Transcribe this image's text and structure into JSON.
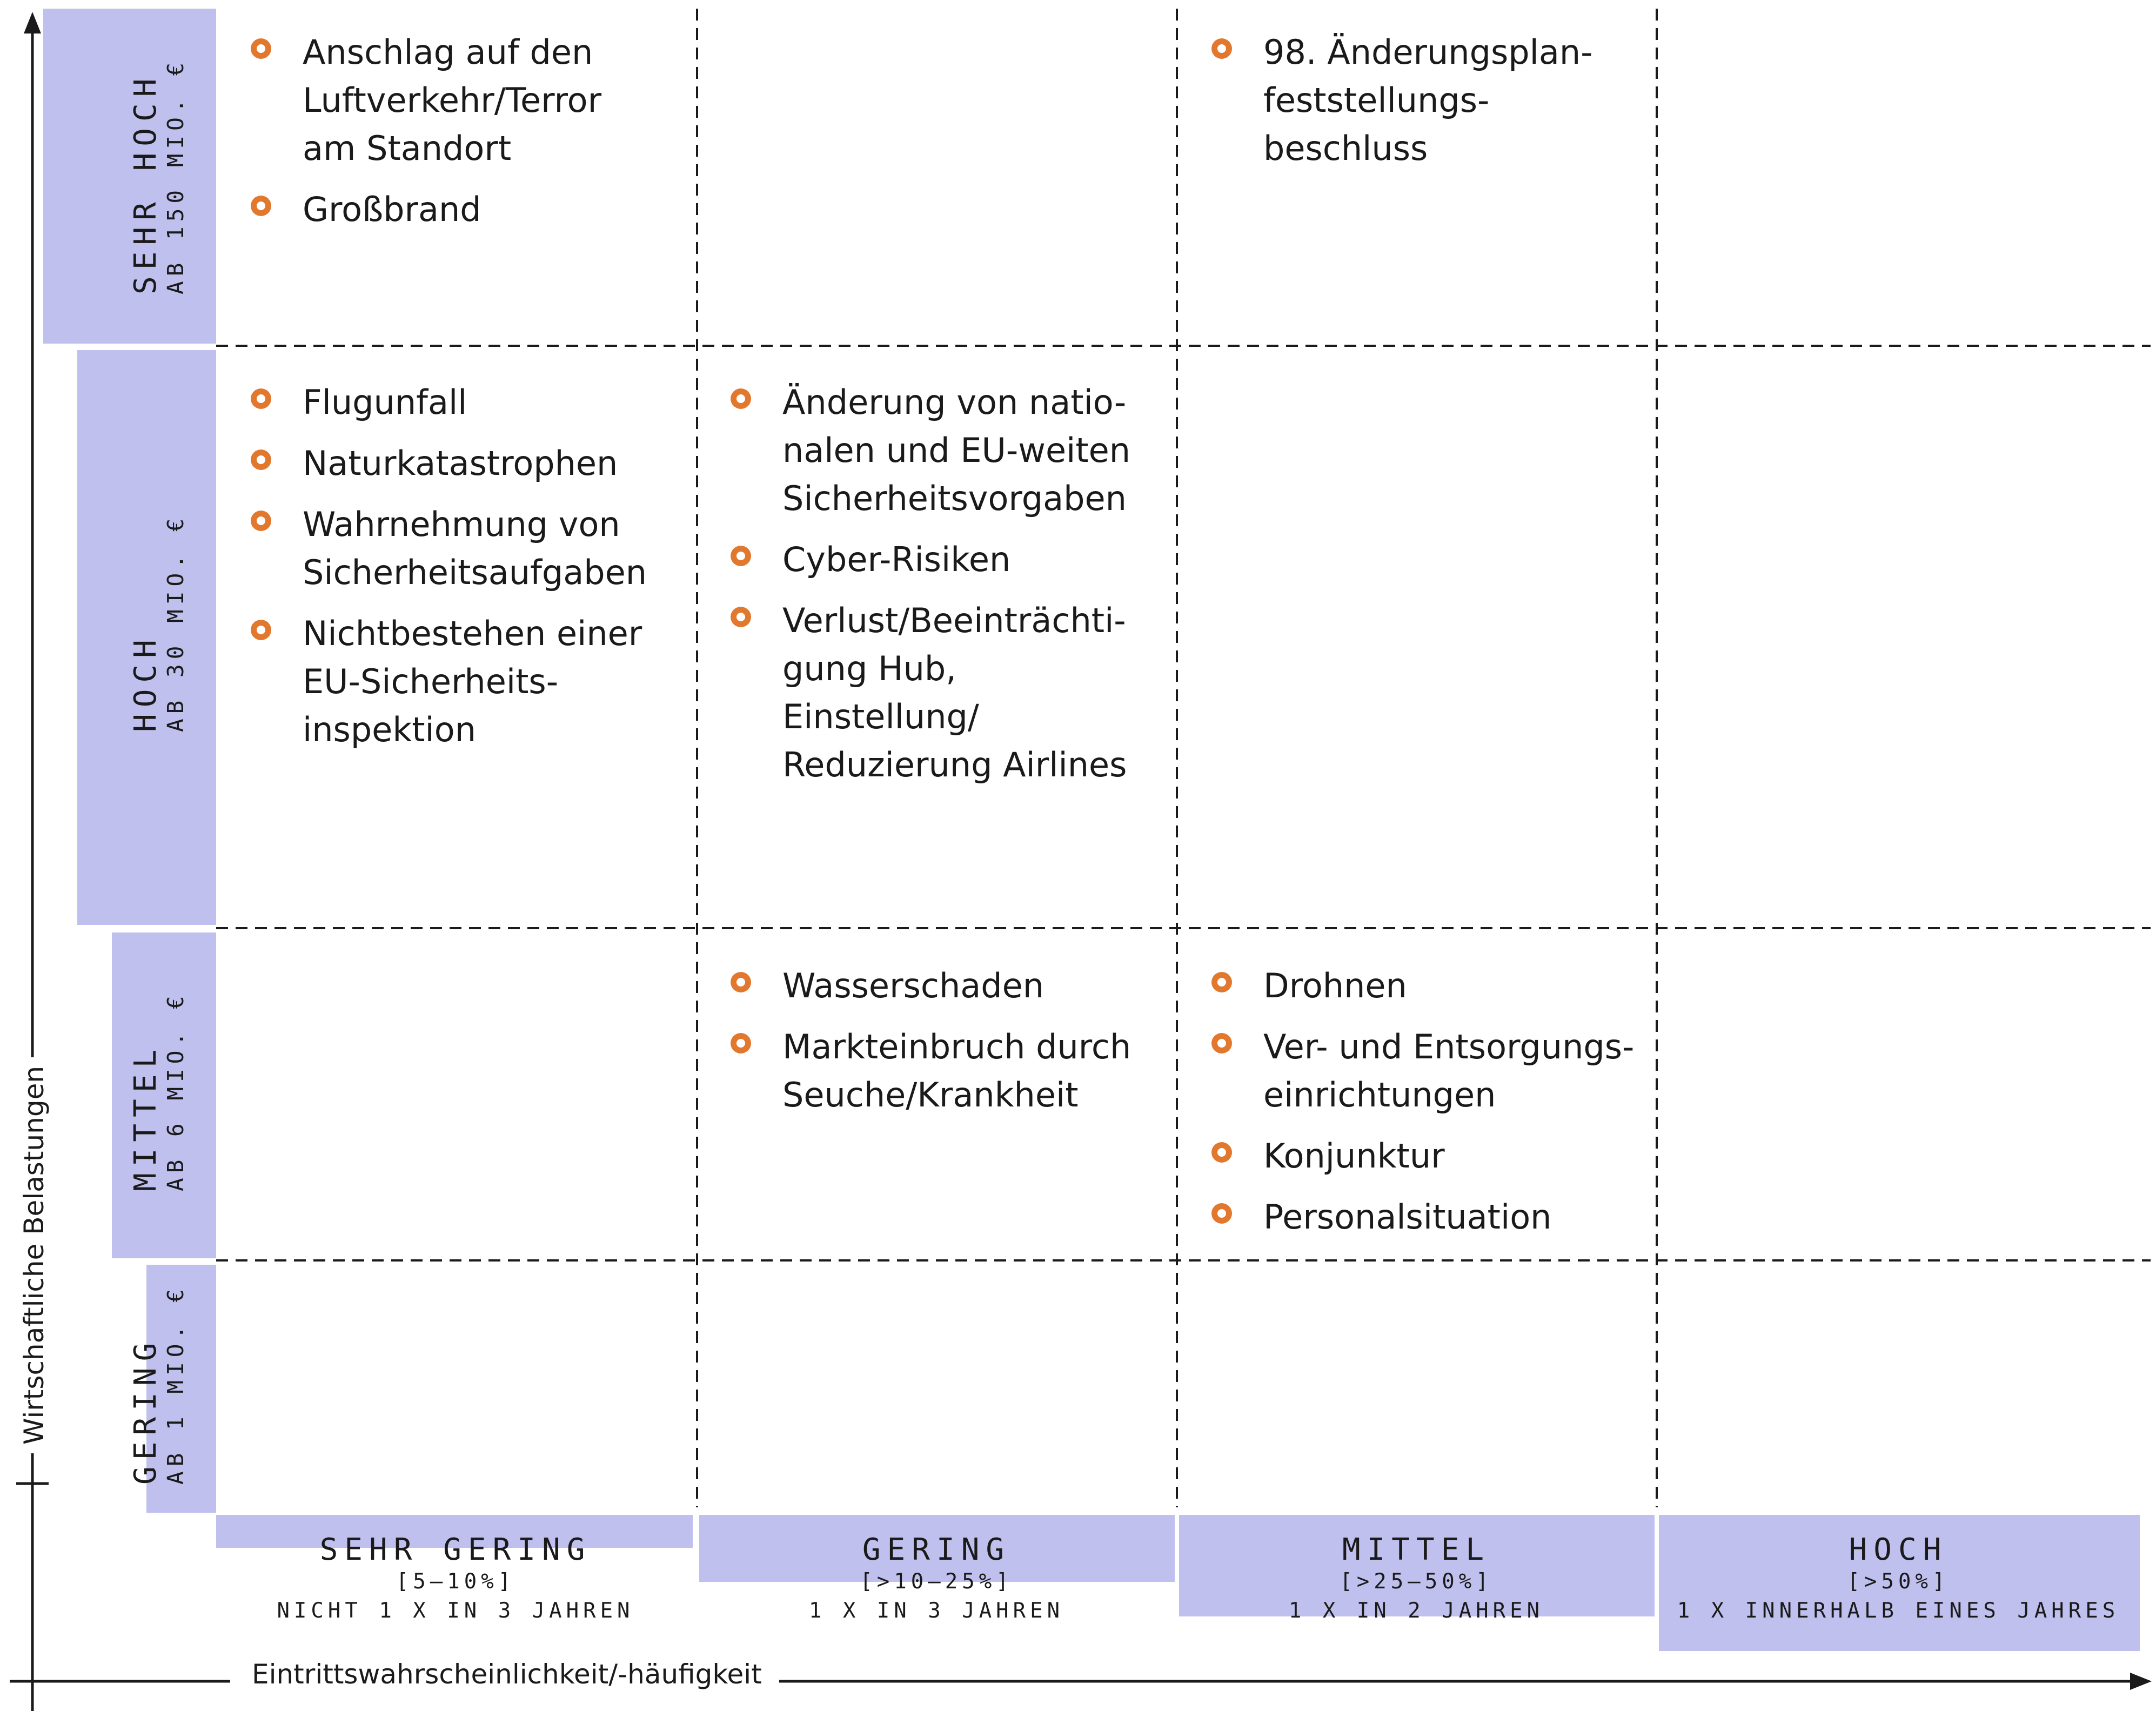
{
  "axes": {
    "y_title": "Wirtschaftliche Belastungen",
    "x_title": "Eintrittswahrscheinlichkeit/-häufigkeit"
  },
  "y_levels": [
    {
      "level": "SEHR HOCH",
      "amount": "AB 150 MIO. €"
    },
    {
      "level": "HOCH",
      "amount": "AB 30 MIO. €"
    },
    {
      "level": "MITTEL",
      "amount": "AB 6 MIO. €"
    },
    {
      "level": "GERING",
      "amount": "AB 1 MIO. €"
    }
  ],
  "x_levels": [
    {
      "level": "SEHR GERING",
      "percent": "[5—10%]",
      "frequency": "NICHT 1 X IN 3 JAHREN"
    },
    {
      "level": "GERING",
      "percent": "[>10—25%]",
      "frequency": "1 X IN 3 JAHREN"
    },
    {
      "level": "MITTEL",
      "percent": "[>25—50%]",
      "frequency": "1 X IN 2 JAHREN"
    },
    {
      "level": "HOCH",
      "percent": "[>50%]",
      "frequency": "1 X INNERHALB EINES JAHRES"
    }
  ],
  "cells": [
    {
      "impact": "SEHR HOCH",
      "probability": "SEHR GERING",
      "items": [
        "Anschlag auf den\nLuftverkehr/Terror\nam Standort",
        "Großbrand"
      ]
    },
    {
      "impact": "SEHR HOCH",
      "probability": "MITTEL",
      "items": [
        "98. Änderungsplan-\nfeststellungs-\nbeschluss"
      ]
    },
    {
      "impact": "HOCH",
      "probability": "SEHR GERING",
      "items": [
        "Flugunfall",
        "Naturkatastrophen",
        "Wahrnehmung von\nSicherheitsaufgaben",
        "Nichtbestehen einer\nEU-Sicherheits-\ninspektion"
      ]
    },
    {
      "impact": "HOCH",
      "probability": "GERING",
      "items": [
        "Änderung von natio-\nnalen und EU-weiten\nSicherheitsvorgaben",
        "Cyber-Risiken",
        "Verlust/Beeinträchti-\ngung Hub, Einstellung/\nReduzierung Airlines"
      ]
    },
    {
      "impact": "MITTEL",
      "probability": "GERING",
      "items": [
        "Wasserschaden",
        "Markteinbruch durch\nSeuche/Krankheit"
      ]
    },
    {
      "impact": "MITTEL",
      "probability": "MITTEL",
      "items": [
        "Drohnen",
        "Ver- und Entsorgungs-\neinrichtungen",
        "Konjunktur",
        "Personalsituation"
      ]
    }
  ],
  "colors": {
    "bar": "#c0c0ef",
    "bullet": "#e2782e",
    "line": "#1a1a1a"
  }
}
